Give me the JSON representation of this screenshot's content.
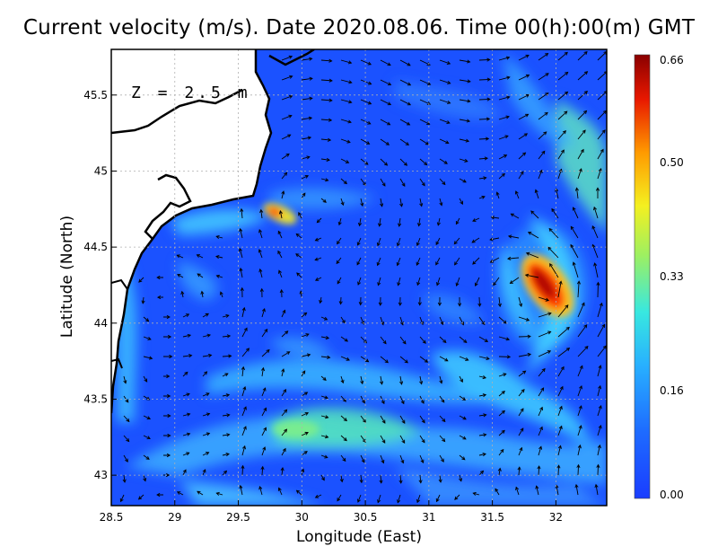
{
  "title": "Current velocity (m/s). Date 2020.08.06. Time 00(h):00(m) GMT",
  "depth_label": "Z = 2.5 m",
  "xlabel": "Longitude (East)",
  "ylabel": "Latitude (North)",
  "chart_data": {
    "type": "heatmap",
    "title": "Current velocity (m/s). Date 2020.08.06. Time 00(h):00(m) GMT",
    "xlabel": "Longitude (East)",
    "ylabel": "Latitude (North)",
    "xlim": [
      28.5,
      32.4
    ],
    "ylim": [
      42.8,
      45.8
    ],
    "x_ticks": [
      {
        "v": 28.5,
        "label": "28.5"
      },
      {
        "v": 29,
        "label": "29"
      },
      {
        "v": 29.5,
        "label": "29.5"
      },
      {
        "v": 30,
        "label": "30"
      },
      {
        "v": 30.5,
        "label": "30.5"
      },
      {
        "v": 31,
        "label": "31"
      },
      {
        "v": 31.5,
        "label": "31.5"
      },
      {
        "v": 32,
        "label": "32"
      }
    ],
    "y_ticks": [
      {
        "v": 43,
        "label": "43"
      },
      {
        "v": 43.5,
        "label": "43.5"
      },
      {
        "v": 44,
        "label": "44"
      },
      {
        "v": 44.5,
        "label": "44.5"
      },
      {
        "v": 45,
        "label": "45"
      },
      {
        "v": 45.5,
        "label": "45.5"
      }
    ],
    "grid": true,
    "colorbar": {
      "min": 0.0,
      "max": 0.66,
      "ticks": [
        {
          "v": 0.0,
          "label": "0.00"
        },
        {
          "v": 0.16,
          "label": "0.16"
        },
        {
          "v": 0.33,
          "label": "0.33"
        },
        {
          "v": 0.5,
          "label": "0.50"
        },
        {
          "v": 0.66,
          "label": "0.66"
        }
      ],
      "colors": [
        "#1a4bff",
        "#2f7bff",
        "#34c8ff",
        "#39f0c6",
        "#b8f048",
        "#ffe000",
        "#ff6a00",
        "#e21000",
        "#8b0000"
      ]
    },
    "features": [
      {
        "name": "southeast eddy core",
        "lon": 31.9,
        "lat": 44.2,
        "speed": 0.62
      },
      {
        "name": "coastal jet",
        "lon": 29.75,
        "lat": 44.72,
        "speed": 0.55
      },
      {
        "name": "southern band",
        "lon": 30.3,
        "lat": 43.3,
        "speed": 0.28
      }
    ]
  },
  "colors": {
    "land": "#ffffff",
    "coastline": "#000000",
    "background_water": "#1b5bff",
    "arrow": "#000000"
  }
}
